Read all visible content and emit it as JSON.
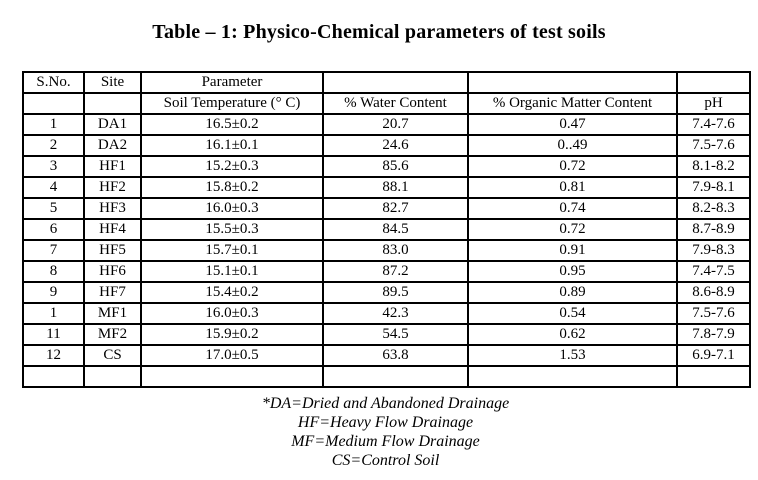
{
  "title": "Table – 1: Physico-Chemical parameters of test soils",
  "table": {
    "header_row1": [
      "S.No.",
      "Site",
      "Parameter",
      "",
      "",
      ""
    ],
    "header_row2": [
      "",
      "",
      "Soil Temperature (° C)",
      "% Water Content",
      "% Organic Matter Content",
      "pH"
    ],
    "rows": [
      [
        "1",
        "DA1",
        "16.5±0.2",
        "20.7",
        "0.47",
        "7.4-7.6"
      ],
      [
        "2",
        "DA2",
        "16.1±0.1",
        "24.6",
        "0..49",
        "7.5-7.6"
      ],
      [
        "3",
        "HF1",
        "15.2±0.3",
        "85.6",
        "0.72",
        "8.1-8.2"
      ],
      [
        "4",
        "HF2",
        "15.8±0.2",
        "88.1",
        "0.81",
        "7.9-8.1"
      ],
      [
        "5",
        "HF3",
        "16.0±0.3",
        "82.7",
        "0.74",
        "8.2-8.3"
      ],
      [
        "6",
        "HF4",
        "15.5±0.3",
        "84.5",
        "0.72",
        "8.7-8.9"
      ],
      [
        "7",
        "HF5",
        "15.7±0.1",
        "83.0",
        "0.91",
        "7.9-8.3"
      ],
      [
        "8",
        "HF6",
        "15.1±0.1",
        "87.2",
        "0.95",
        "7.4-7.5"
      ],
      [
        "9",
        "HF7",
        "15.4±0.2",
        "89.5",
        "0.89",
        "8.6-8.9"
      ],
      [
        "1",
        "MF1",
        "16.0±0.3",
        "42.3",
        "0.54",
        "7.5-7.6"
      ],
      [
        "11",
        "MF2",
        "15.9±0.2",
        "54.5",
        "0.62",
        "7.8-7.9"
      ],
      [
        "12",
        "CS",
        "17.0±0.5",
        "63.8",
        "1.53",
        "6.9-7.1"
      ],
      [
        "",
        "",
        "",
        "",
        "",
        ""
      ]
    ]
  },
  "footnotes": [
    "*DA=Dried and Abandoned Drainage",
    "HF=Heavy Flow Drainage",
    "MF=Medium Flow Drainage",
    "CS=Control Soil"
  ]
}
